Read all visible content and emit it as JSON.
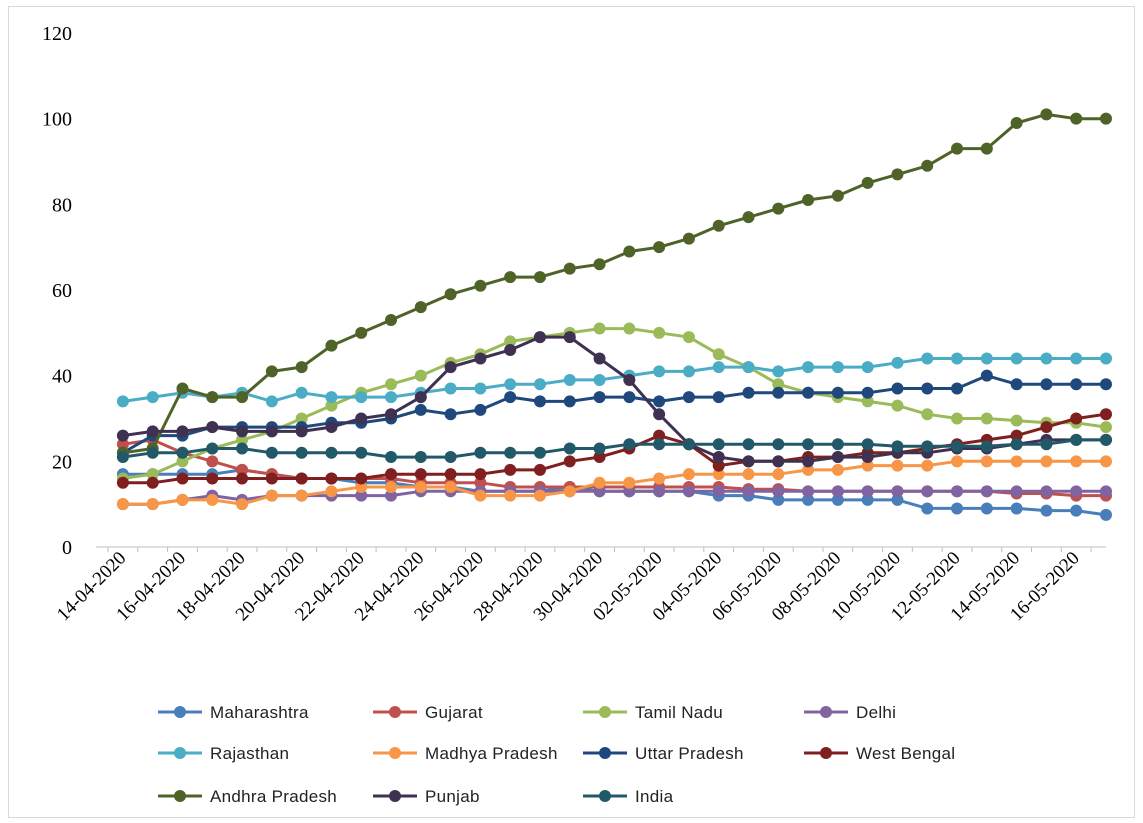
{
  "chart_data": {
    "type": "line",
    "title": "",
    "xlabel": "",
    "ylabel": "",
    "ylim": [
      0,
      120
    ],
    "yticks": [
      "0",
      "20",
      "40",
      "60",
      "80",
      "100",
      "120"
    ],
    "grid": false,
    "legend_position": "bottom",
    "x": [
      "14-04-2020",
      "15-04-2020",
      "16-04-2020",
      "17-04-2020",
      "18-04-2020",
      "19-04-2020",
      "20-04-2020",
      "21-04-2020",
      "22-04-2020",
      "23-04-2020",
      "24-04-2020",
      "25-04-2020",
      "26-04-2020",
      "27-04-2020",
      "28-04-2020",
      "29-04-2020",
      "30-04-2020",
      "01-05-2020",
      "02-05-2020",
      "03-05-2020",
      "04-05-2020",
      "05-05-2020",
      "06-05-2020",
      "07-05-2020",
      "08-05-2020",
      "09-05-2020",
      "10-05-2020",
      "11-05-2020",
      "12-05-2020",
      "13-05-2020",
      "14-05-2020",
      "15-05-2020",
      "16-05-2020",
      "17-05-2020"
    ],
    "xtick_labels": [
      "14-04-2020",
      "16-04-2020",
      "18-04-2020",
      "20-04-2020",
      "22-04-2020",
      "24-04-2020",
      "26-04-2020",
      "28-04-2020",
      "30-04-2020",
      "02-05-2020",
      "04-05-2020",
      "06-05-2020",
      "08-05-2020",
      "10-05-2020",
      "12-05-2020",
      "14-05-2020",
      "16-05-2020"
    ],
    "series": [
      {
        "name": "Maharashtra",
        "color": "#4a7ebb",
        "values": [
          17,
          17,
          17,
          17,
          18,
          17,
          16,
          16,
          15,
          15,
          14,
          14,
          13,
          13,
          13,
          14,
          13,
          13,
          13,
          13,
          12,
          12,
          11,
          11,
          11,
          11,
          11,
          9,
          9,
          9,
          9,
          8.5,
          8.5,
          7.5
        ]
      },
      {
        "name": "Gujarat",
        "color": "#c0504d",
        "values": [
          24,
          25,
          22,
          20,
          18,
          17,
          16,
          16,
          16,
          16,
          15,
          15,
          15,
          14,
          14,
          14,
          14,
          14,
          14,
          14,
          14,
          13.5,
          13.5,
          13,
          13,
          13,
          13,
          13,
          13,
          13,
          12.5,
          12.5,
          12,
          12
        ]
      },
      {
        "name": "Tamil Nadu",
        "color": "#9bbb59",
        "values": [
          16,
          17,
          20,
          23,
          25,
          27,
          30,
          33,
          36,
          38,
          40,
          43,
          45,
          48,
          49,
          50,
          51,
          51,
          50,
          49,
          45,
          42,
          38,
          36,
          35,
          34,
          33,
          31,
          30,
          30,
          29.5,
          29,
          29,
          28
        ]
      },
      {
        "name": "Delhi",
        "color": "#8064a2",
        "values": [
          10,
          10,
          11,
          12,
          11,
          12,
          12,
          12,
          12,
          12,
          13,
          13,
          13,
          13,
          13,
          13,
          13,
          13,
          13,
          13,
          13,
          13,
          13,
          13,
          13,
          13,
          13,
          13,
          13,
          13,
          13,
          13,
          13,
          13
        ]
      },
      {
        "name": "Rajasthan",
        "color": "#4bacc6",
        "values": [
          34,
          35,
          36,
          35,
          36,
          34,
          36,
          35,
          35,
          35,
          36,
          37,
          37,
          38,
          38,
          39,
          39,
          40,
          41,
          41,
          42,
          42,
          41,
          42,
          42,
          42,
          43,
          44,
          44,
          44,
          44,
          44,
          44,
          44
        ]
      },
      {
        "name": "Madhya Pradesh",
        "color": "#f79646",
        "values": [
          10,
          10,
          11,
          11,
          10,
          12,
          12,
          13,
          14,
          14,
          14,
          14,
          12,
          12,
          12,
          13,
          15,
          15,
          16,
          17,
          17,
          17,
          17,
          18,
          18,
          19,
          19,
          19,
          20,
          20,
          20,
          20,
          20,
          20
        ]
      },
      {
        "name": "Uttar Pradesh",
        "color": "#1f497d",
        "values": [
          22,
          26,
          26,
          28,
          28,
          28,
          28,
          29,
          29,
          30,
          32,
          31,
          32,
          35,
          34,
          34,
          35,
          35,
          34,
          35,
          35,
          36,
          36,
          36,
          36,
          36,
          37,
          37,
          37,
          40,
          38,
          38,
          38,
          38
        ]
      },
      {
        "name": "West Bengal",
        "color": "#7f1f1f",
        "values": [
          15,
          15,
          16,
          16,
          16,
          16,
          16,
          16,
          16,
          17,
          17,
          17,
          17,
          18,
          18,
          20,
          21,
          23,
          26,
          24,
          19,
          20,
          20,
          21,
          21,
          22,
          22,
          23,
          24,
          25,
          26,
          28,
          30,
          31
        ]
      },
      {
        "name": "Andhra Pradesh",
        "color": "#4f6228",
        "values": [
          22,
          23,
          37,
          35,
          35,
          41,
          42,
          47,
          50,
          53,
          56,
          59,
          61,
          63,
          63,
          65,
          66,
          69,
          70,
          72,
          75,
          77,
          79,
          81,
          82,
          85,
          87,
          89,
          93,
          93,
          99,
          101,
          100,
          100
        ]
      },
      {
        "name": "Punjab",
        "color": "#3f3151",
        "values": [
          26,
          27,
          27,
          28,
          27,
          27,
          27,
          28,
          30,
          31,
          35,
          42,
          44,
          46,
          49,
          49,
          44,
          39,
          31,
          24,
          21,
          20,
          20,
          20,
          21,
          21,
          22,
          22,
          23,
          23,
          24,
          25,
          25,
          25
        ]
      },
      {
        "name": "India",
        "color": "#215968",
        "values": [
          21,
          22,
          22,
          23,
          23,
          22,
          22,
          22,
          22,
          21,
          21,
          21,
          22,
          22,
          22,
          23,
          23,
          24,
          24,
          24,
          24,
          24,
          24,
          24,
          24,
          24,
          23.5,
          23.5,
          23.5,
          23.5,
          24,
          24,
          25,
          25
        ]
      }
    ]
  }
}
